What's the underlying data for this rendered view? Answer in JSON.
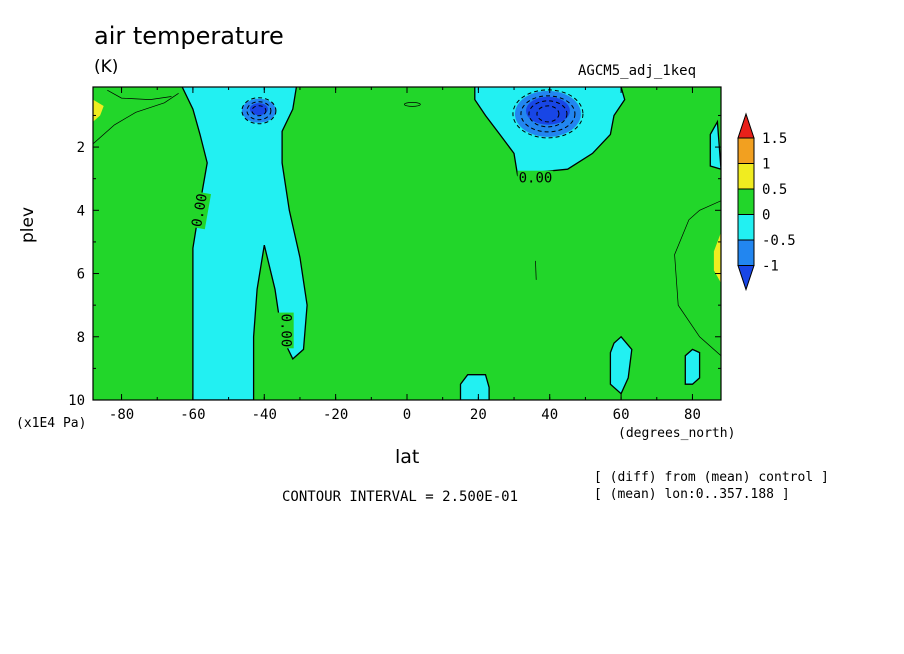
{
  "chart_data": {
    "type": "heatmap",
    "title": "air temperature",
    "units": "(K)",
    "run_label": "AGCM5_adj_1keq",
    "xlabel": "lat",
    "x_unit_label": "(degrees_north)",
    "ylabel": "plev",
    "y_unit_label": "(x1E4 Pa)",
    "xlim": [
      -88,
      88
    ],
    "ylim": [
      10,
      0.1
    ],
    "x_ticks": [
      "-80",
      "-60",
      "-40",
      "-20",
      "0",
      "20",
      "40",
      "60",
      "80"
    ],
    "x_tick_values": [
      -80,
      -60,
      -40,
      -20,
      0,
      20,
      40,
      60,
      80
    ],
    "y_ticks": [
      "2",
      "4",
      "6",
      "8",
      "10"
    ],
    "y_tick_values": [
      2,
      4,
      6,
      8,
      10
    ],
    "contour_interval_text": "CONTOUR INTERVAL = 2.500E-01",
    "contour_label": "0.00",
    "colorbar": {
      "labels": [
        "1.5",
        "1",
        "0.5",
        "0",
        "-0.5",
        "-1"
      ],
      "levels": [
        1.5,
        1,
        0.5,
        0,
        -0.5,
        -1
      ],
      "colors": [
        "#e8201a",
        "#f2a020",
        "#f0ec20",
        "#22d62a",
        "#22f0f2",
        "#2286f0",
        "#1846e6"
      ]
    },
    "notes": [
      "[ (diff) from (mean) control ]",
      "[ (mean) lon:0..357.188 ]"
    ],
    "features": [
      {
        "kind": "cold_core",
        "lat": -41,
        "plev": 0.8,
        "min": -1.0
      },
      {
        "kind": "cold_core",
        "lat": 40,
        "plev": 0.9,
        "min": -1.25
      },
      {
        "kind": "cold_tongue",
        "lat_range": [
          -60,
          -28
        ],
        "plev_range": [
          0.1,
          10
        ]
      },
      {
        "kind": "cold_patch",
        "lat": 20,
        "plev": 9.7
      },
      {
        "kind": "cold_patch",
        "lat": 62,
        "plev": 9.2
      },
      {
        "kind": "cold_patch",
        "lat": 81,
        "plev": 9.1
      },
      {
        "kind": "warm_patch",
        "lat": -87,
        "plev": 0.9
      },
      {
        "kind": "warm_patch",
        "lat": 88,
        "plev": 5.5
      }
    ]
  }
}
